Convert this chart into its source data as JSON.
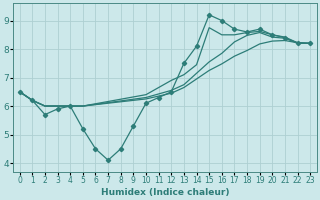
{
  "xlabel": "Humidex (Indice chaleur)",
  "xlim": [
    -0.5,
    23.5
  ],
  "ylim": [
    3.7,
    9.6
  ],
  "yticks": [
    4,
    5,
    6,
    7,
    8,
    9
  ],
  "xticks": [
    0,
    1,
    2,
    3,
    4,
    5,
    6,
    7,
    8,
    9,
    10,
    11,
    12,
    13,
    14,
    15,
    16,
    17,
    18,
    19,
    20,
    21,
    22,
    23
  ],
  "bg_color": "#cce8ea",
  "grid_color": "#aecfd2",
  "line_color": "#2d7d78",
  "line1": {
    "x": [
      0,
      1,
      2,
      3,
      4,
      5,
      6,
      7,
      8,
      9,
      10,
      11,
      12,
      13,
      14,
      15,
      16,
      17,
      18,
      19,
      20,
      21,
      22,
      23
    ],
    "y": [
      6.5,
      6.2,
      5.7,
      5.9,
      6.0,
      5.2,
      4.5,
      4.1,
      4.5,
      5.3,
      6.1,
      6.3,
      6.5,
      7.5,
      8.1,
      9.2,
      9.0,
      8.7,
      8.6,
      8.7,
      8.5,
      8.4,
      8.2,
      8.2
    ],
    "marker": true
  },
  "line2": {
    "x": [
      0,
      1,
      2,
      3,
      4,
      5,
      10,
      12,
      13,
      14,
      15,
      16,
      17,
      18,
      19,
      20,
      21,
      22,
      23
    ],
    "y": [
      6.5,
      6.2,
      6.0,
      6.0,
      6.0,
      6.0,
      6.4,
      6.9,
      7.1,
      7.45,
      8.75,
      8.5,
      8.5,
      8.58,
      8.62,
      8.5,
      8.42,
      8.22,
      8.2
    ],
    "marker": false
  },
  "line3": {
    "x": [
      0,
      1,
      2,
      3,
      4,
      5,
      10,
      12,
      13,
      14,
      15,
      16,
      17,
      18,
      19,
      20,
      21,
      22,
      23
    ],
    "y": [
      6.5,
      6.2,
      6.0,
      6.0,
      6.0,
      6.0,
      6.3,
      6.55,
      6.75,
      7.15,
      7.55,
      7.85,
      8.25,
      8.48,
      8.58,
      8.42,
      8.38,
      8.22,
      8.2
    ],
    "marker": false
  },
  "line4": {
    "x": [
      0,
      1,
      2,
      3,
      4,
      5,
      10,
      12,
      13,
      14,
      15,
      16,
      17,
      18,
      19,
      20,
      21,
      22,
      23
    ],
    "y": [
      6.5,
      6.2,
      6.0,
      6.0,
      6.0,
      6.0,
      6.25,
      6.45,
      6.65,
      6.95,
      7.25,
      7.48,
      7.75,
      7.95,
      8.18,
      8.28,
      8.3,
      8.22,
      8.2
    ],
    "marker": false
  }
}
